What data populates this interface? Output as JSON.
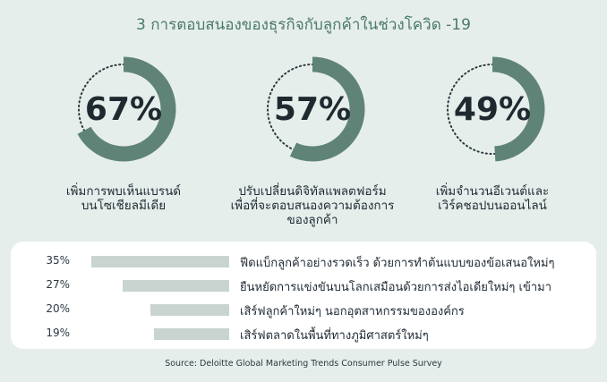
{
  "title": "3 การตอบสนองของธุรกิจกับลูกค้าในช่วงโควิด -19",
  "colors": {
    "accent": "#5f8477",
    "dots": "#2c3a3f",
    "bar": "#c9d4d1",
    "background": "#e6eeeb"
  },
  "stats": [
    {
      "percent_label": "67%",
      "value": 67,
      "caption_line1": "เพิ่มการพบเห็นแบรนด์",
      "caption_line2": "บนโซเชียลมีเดีย",
      "caption_line3": ""
    },
    {
      "percent_label": "57%",
      "value": 57,
      "caption_line1": "ปรับเปลี่ยนดิจิทัลแพลตฟอร์ม",
      "caption_line2": "เพื่อที่จะตอบสนองความต้องการ",
      "caption_line3": "ของลูกค้า"
    },
    {
      "percent_label": "49%",
      "value": 49,
      "caption_line1": "เพิ่มจำนวนอีเวนต์และ",
      "caption_line2": "เวิร์คชอปบนออนไลน์",
      "caption_line3": ""
    }
  ],
  "bars": [
    {
      "percent_label": "35%",
      "value": 35,
      "label": "ฟีดแบ็กลูกค้าอย่างรวดเร็ว ด้วยการทำต้นแบบของข้อเสนอใหม่ๆ"
    },
    {
      "percent_label": "27%",
      "value": 27,
      "label": "ยืนหยัดการแข่งขันบนโลกเสมือนด้วยการส่งไอเดียใหม่ๆ เข้ามา"
    },
    {
      "percent_label": "20%",
      "value": 20,
      "label": "เสิร์ฟลูกค้าใหม่ๆ นอกอุตสาหกรรมขององค์กร"
    },
    {
      "percent_label": "19%",
      "value": 19,
      "label": "เสิร์ฟตลาดในพื้นที่ทางภูมิศาสตร์ใหม่ๆ"
    }
  ],
  "source": "Source: Deloitte Global Marketing Trends Consumer Pulse Survey"
}
